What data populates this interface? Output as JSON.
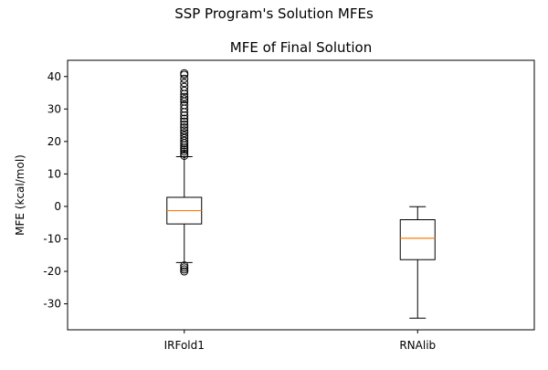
{
  "chart_data": {
    "type": "box",
    "suptitle": "SSP Program's Solution MFEs",
    "title": "MFE of Final Solution",
    "xlabel": "",
    "ylabel": "MFE (kcal/mol)",
    "ylim": [
      -38,
      45
    ],
    "yticks": [
      -30,
      -20,
      -10,
      0,
      10,
      20,
      30,
      40
    ],
    "grid": false,
    "categories": [
      "IRFold1",
      "RNAlib"
    ],
    "boxes": [
      {
        "name": "IRFold1",
        "whisker_low": -17.3,
        "q1": -5.4,
        "median": -1.3,
        "q3": 2.8,
        "whisker_high": 15.3,
        "outliers": [
          -18.2,
          -18.8,
          -19.4,
          -20.0,
          15.6,
          16.2,
          16.9,
          17.5,
          18.1,
          18.8,
          19.5,
          20.2,
          21.0,
          21.8,
          22.6,
          23.4,
          24.3,
          25.2,
          26.1,
          27.0,
          28.0,
          29.0,
          30.1,
          31.2,
          32.3,
          33.0,
          33.7,
          34.6,
          35.6,
          36.8,
          38.0,
          39.3,
          40.5,
          41.0
        ]
      },
      {
        "name": "RNAlib",
        "whisker_low": -34.4,
        "q1": -16.4,
        "median": -9.8,
        "q3": -4.1,
        "whisker_high": -0.1,
        "outliers": []
      }
    ],
    "colors": {
      "box": "#000000",
      "median": "#ff7f0e",
      "outlier": "#000000"
    }
  }
}
